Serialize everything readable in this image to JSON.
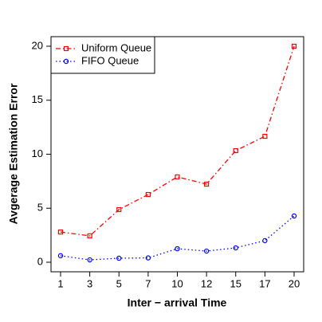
{
  "chart_data": {
    "type": "line",
    "x_label": "Inter − arrival Time",
    "y_label": "Avgerage Estimation Error",
    "categories": [
      "1",
      "3",
      "5",
      "7",
      "10",
      "12",
      "15",
      "17",
      "20"
    ],
    "series": [
      {
        "name": "Uniform Queue",
        "color": "#ff0000",
        "marker": "square",
        "dash": "dashdot",
        "values": [
          2.8,
          2.44,
          4.87,
          6.27,
          7.9,
          7.23,
          10.33,
          11.66,
          20.0
        ]
      },
      {
        "name": "FIFO Queue",
        "color": "#0000ff",
        "marker": "circle",
        "dash": "dotted",
        "values": [
          0.6,
          0.22,
          0.37,
          0.4,
          1.25,
          1.03,
          1.33,
          2.0,
          4.28
        ]
      }
    ],
    "ylim": [
      0,
      20
    ],
    "yticks": [
      0,
      5,
      10,
      15,
      20
    ],
    "legend": "top-left"
  }
}
